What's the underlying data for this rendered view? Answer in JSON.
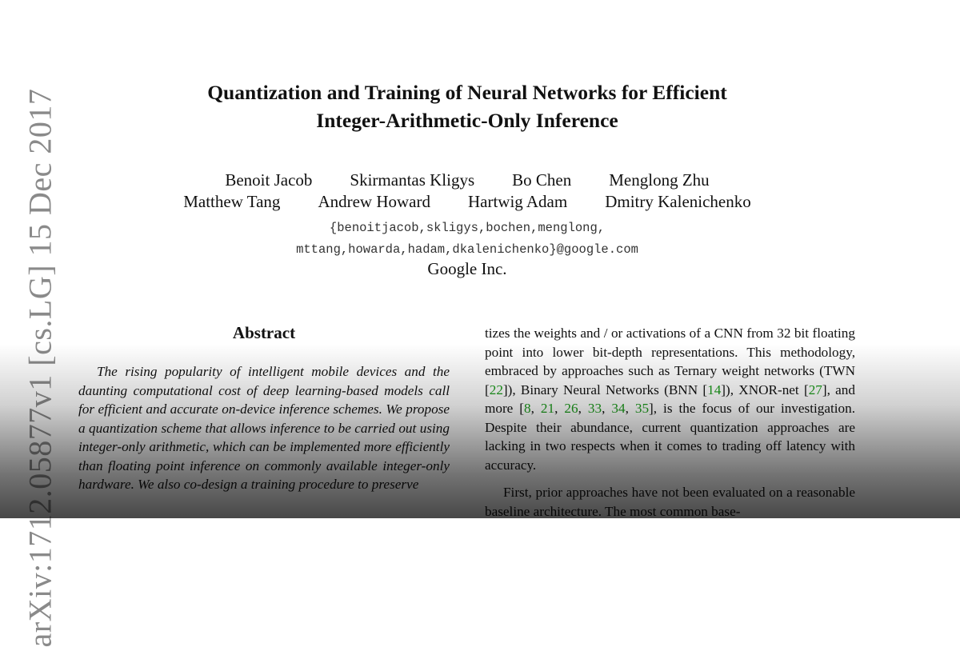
{
  "arxiv_stamp": "arXiv:1712.05877v1  [cs.LG]  15 Dec 2017",
  "title": {
    "line1": "Quantization and Training of Neural Networks for Efficient",
    "line2": "Integer-Arithmetic-Only Inference"
  },
  "authors": {
    "row1": [
      "Benoit Jacob",
      "Skirmantas Kligys",
      "Bo Chen",
      "Menglong Zhu"
    ],
    "row2": [
      "Matthew Tang",
      "Andrew Howard",
      "Hartwig Adam",
      "Dmitry Kalenichenko"
    ]
  },
  "emails": {
    "line1": "{benoitjacob,skligys,bochen,menglong,",
    "line2": "mttang,howarda,hadam,dkalenichenko}@google.com"
  },
  "affiliation": "Google Inc.",
  "abstract": {
    "heading": "Abstract",
    "text": "The rising popularity of intelligent mobile devices and the daunting computational cost of deep learning-based models call for efficient and accurate on-device inference schemes. We propose a quantization scheme that allows inference to be carried out using integer-only arithmetic, which can be implemented more efficiently than floating point inference on commonly available integer-only hardware. We also co-design a training procedure to preserve"
  },
  "right_column": {
    "p1_a": "tizes the weights and / or activations of a CNN from 32 bit floating point into lower bit-depth representations. This methodology, embraced by approaches such as Ternary weight networks (TWN [",
    "cite_22": "22",
    "p1_b": "]), Binary Neural Networks (BNN [",
    "cite_14": "14",
    "p1_c": "]), XNOR-net [",
    "cite_27": "27",
    "p1_d": "], and more [",
    "cite_8": "8",
    "cite_21": "21",
    "cite_26": "26",
    "cite_33": "33",
    "cite_34": "34",
    "cite_35": "35",
    "sep": ", ",
    "p1_e": "], is the focus of our investigation. Despite their abundance, current quantization approaches are lacking in two respects when it comes to trading off latency with accuracy.",
    "p2": "First, prior approaches have not been evaluated on a reasonable baseline architecture. The most common base-"
  },
  "colors": {
    "citation_link": "#1a9a1a",
    "stamp_gray": "#8a8a8a"
  }
}
